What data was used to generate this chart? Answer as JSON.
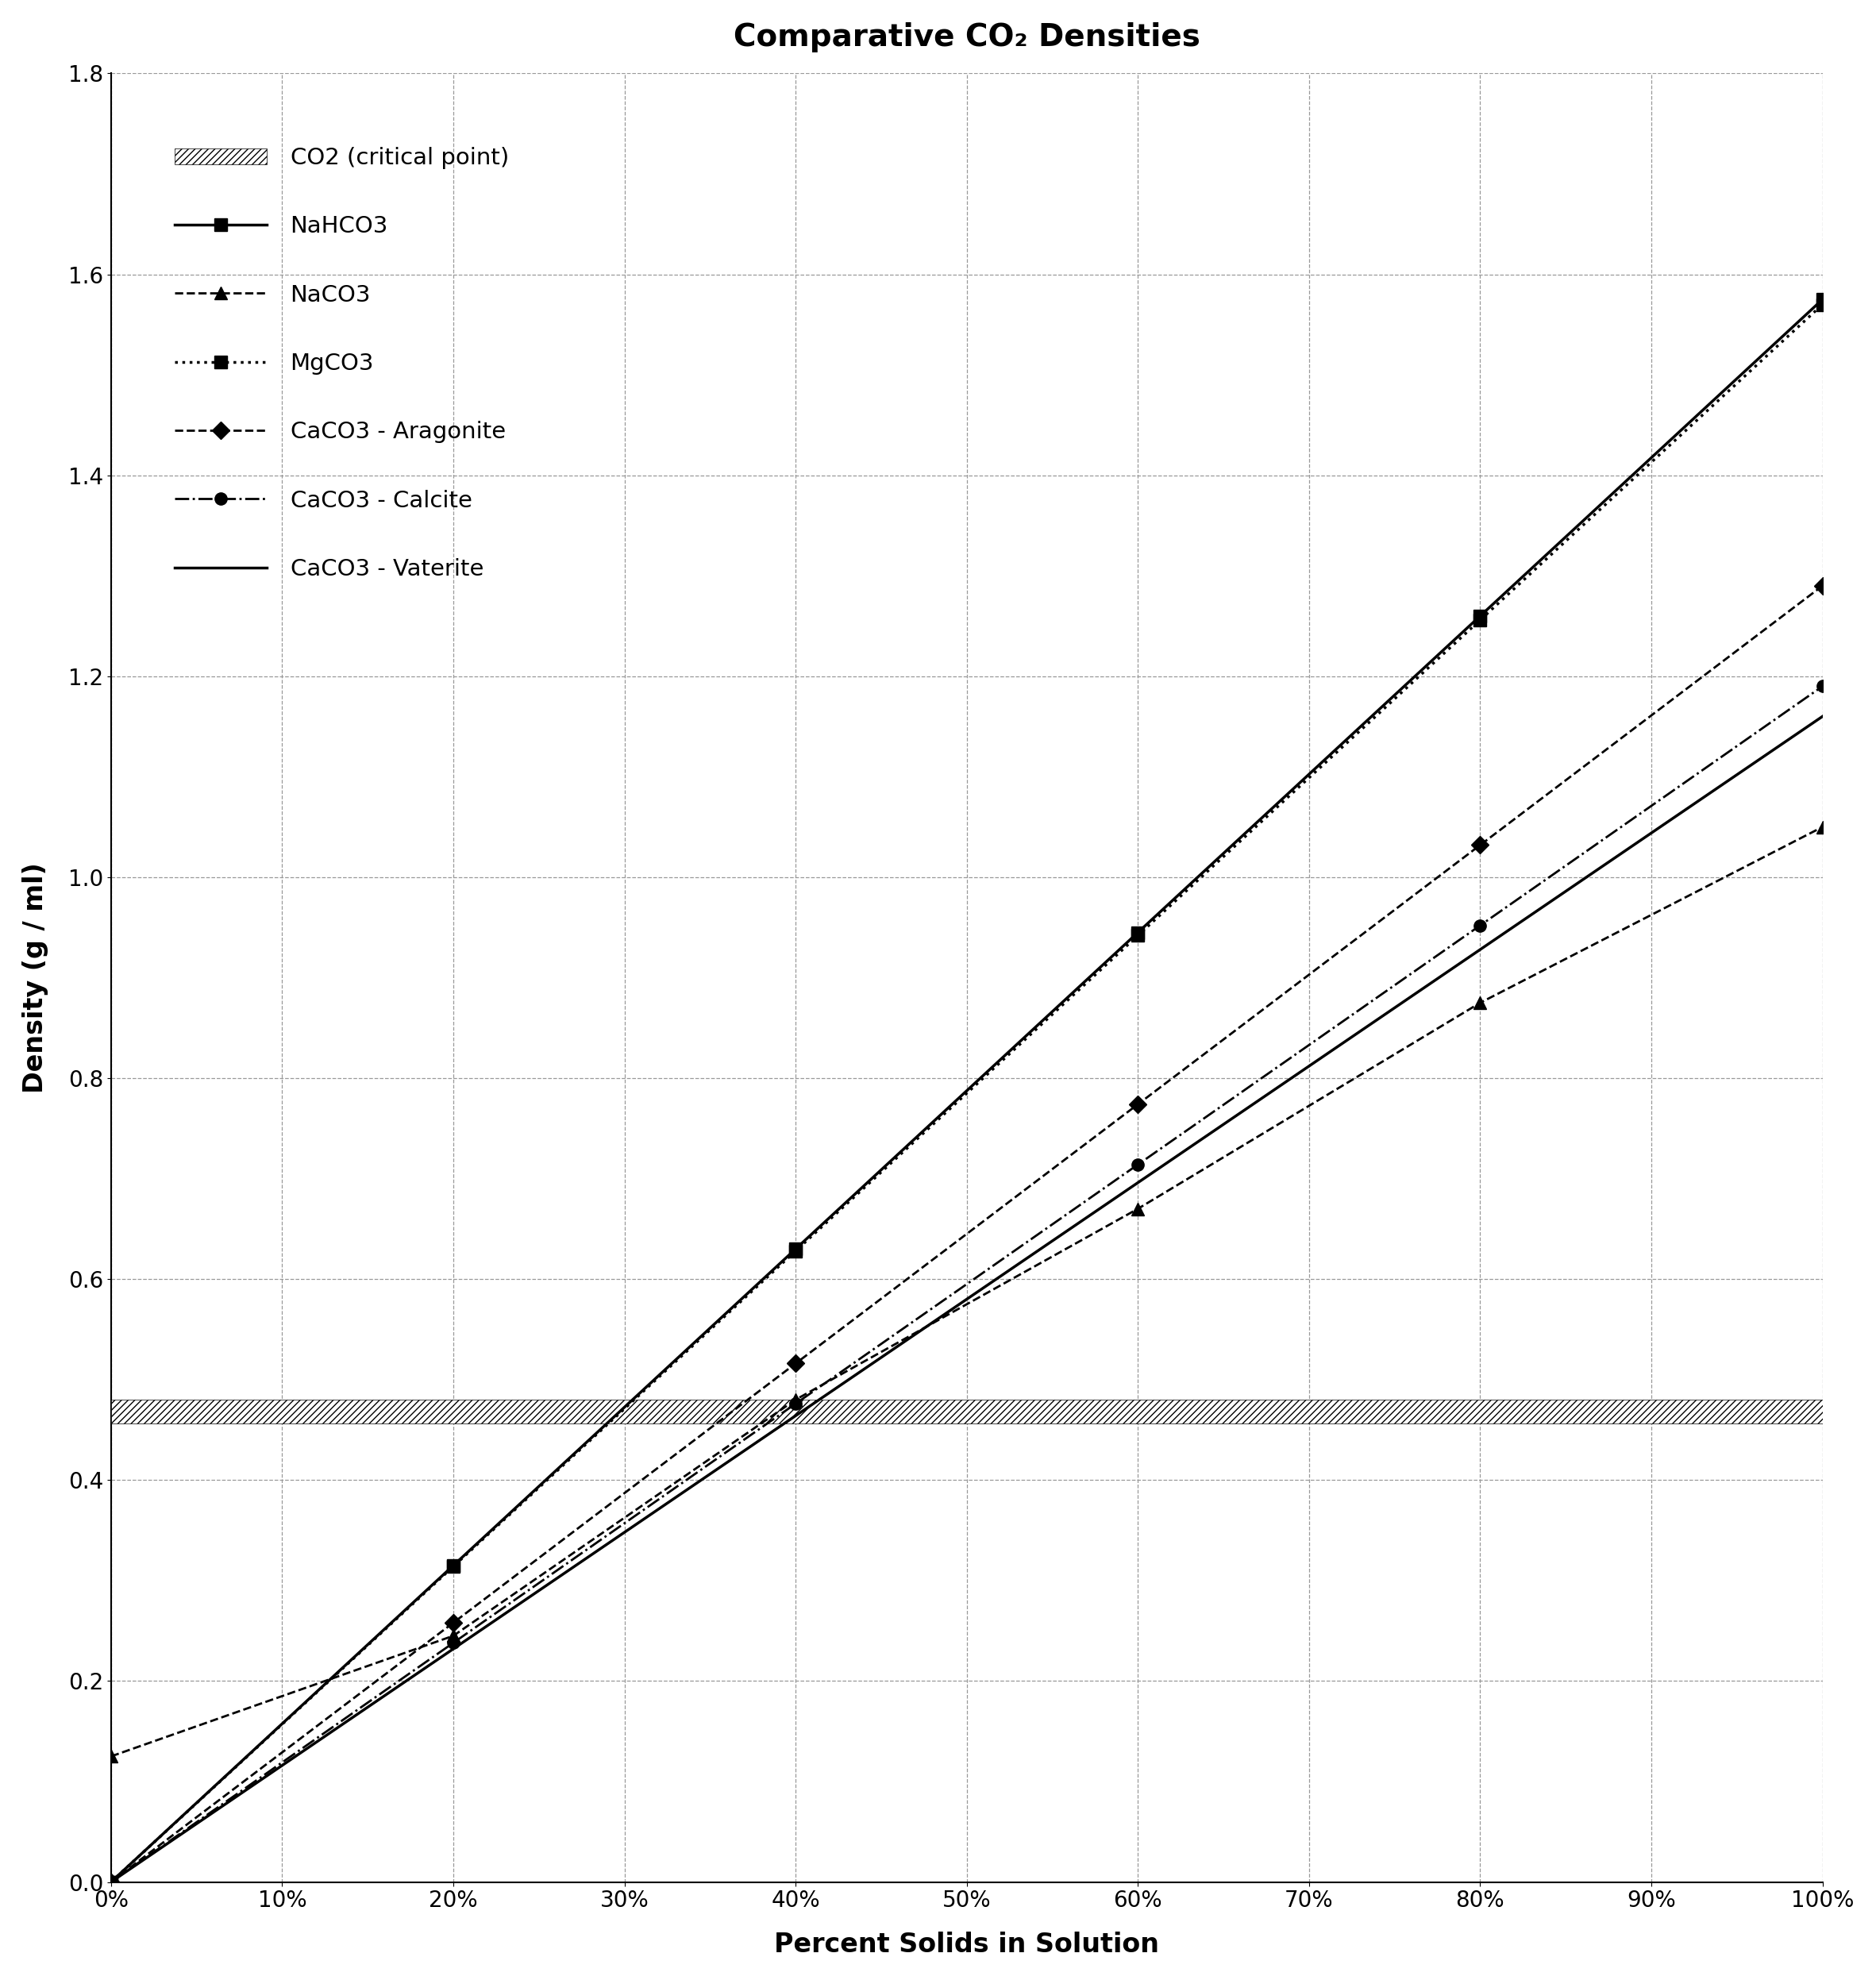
{
  "title": "Comparative CO₂ Densities",
  "xlabel": "Percent Solids in Solution",
  "ylabel": "Density (g / ml)",
  "xlim": [
    0,
    1.0
  ],
  "ylim": [
    0.0,
    1.8
  ],
  "xtick_labels": [
    "0%",
    "10%",
    "20%",
    "30%",
    "40%",
    "50%",
    "60%",
    "70%",
    "80%",
    "90%",
    "100%"
  ],
  "xtick_vals": [
    0.0,
    0.1,
    0.2,
    0.3,
    0.4,
    0.5,
    0.6,
    0.7,
    0.8,
    0.9,
    1.0
  ],
  "ytick_vals": [
    0.0,
    0.2,
    0.4,
    0.6,
    0.8,
    1.0,
    1.2,
    1.4,
    1.6,
    1.8
  ],
  "co2_critical": 0.468,
  "series": [
    {
      "name": "NaHCO3",
      "x": [
        0.0,
        0.2,
        0.4,
        0.6,
        0.8,
        1.0
      ],
      "y": [
        0.0,
        0.315,
        0.63,
        0.945,
        1.26,
        1.575
      ],
      "linestyle": "-",
      "marker": "s",
      "linewidth": 2.5,
      "markersize": 11,
      "color": "#000000"
    },
    {
      "name": "NaCO3",
      "x": [
        0.0,
        0.2,
        0.4,
        0.6,
        0.8,
        1.0
      ],
      "y": [
        0.125,
        0.245,
        0.48,
        0.67,
        0.875,
        1.05
      ],
      "linestyle": "--",
      "marker": "^",
      "linewidth": 2.0,
      "markersize": 11,
      "color": "#000000"
    },
    {
      "name": "MgCO3",
      "x": [
        0.0,
        0.2,
        0.4,
        0.6,
        0.8,
        1.0
      ],
      "y": [
        0.0,
        0.314,
        0.628,
        0.942,
        1.256,
        1.57
      ],
      "linestyle": ":",
      "marker": "s",
      "linewidth": 2.5,
      "markersize": 11,
      "color": "#000000"
    },
    {
      "name": "CaCO3 - Aragonite",
      "x": [
        0.0,
        0.2,
        0.4,
        0.6,
        0.8,
        1.0
      ],
      "y": [
        0.0,
        0.258,
        0.516,
        0.774,
        1.032,
        1.29
      ],
      "linestyle": "--",
      "marker": "D",
      "linewidth": 2.0,
      "markersize": 11,
      "color": "#000000"
    },
    {
      "name": "CaCO3 - Calcite",
      "x": [
        0.0,
        0.2,
        0.4,
        0.6,
        0.8,
        1.0
      ],
      "y": [
        0.0,
        0.238,
        0.476,
        0.714,
        0.952,
        1.19
      ],
      "linestyle": "-.",
      "marker": "o",
      "linewidth": 2.0,
      "markersize": 11,
      "color": "#000000"
    },
    {
      "name": "CaCO3 - Vaterite",
      "x": [
        0.0,
        0.2,
        0.4,
        0.6,
        0.8,
        1.0
      ],
      "y": [
        0.0,
        0.232,
        0.464,
        0.696,
        0.928,
        1.16
      ],
      "linestyle": "-",
      "marker": "None",
      "linewidth": 2.5,
      "markersize": 0,
      "color": "#000000"
    }
  ],
  "background_color": "#ffffff",
  "grid_color": "#aaaaaa",
  "title_fontsize": 28,
  "axis_label_fontsize": 24,
  "tick_fontsize": 20,
  "legend_fontsize": 21
}
